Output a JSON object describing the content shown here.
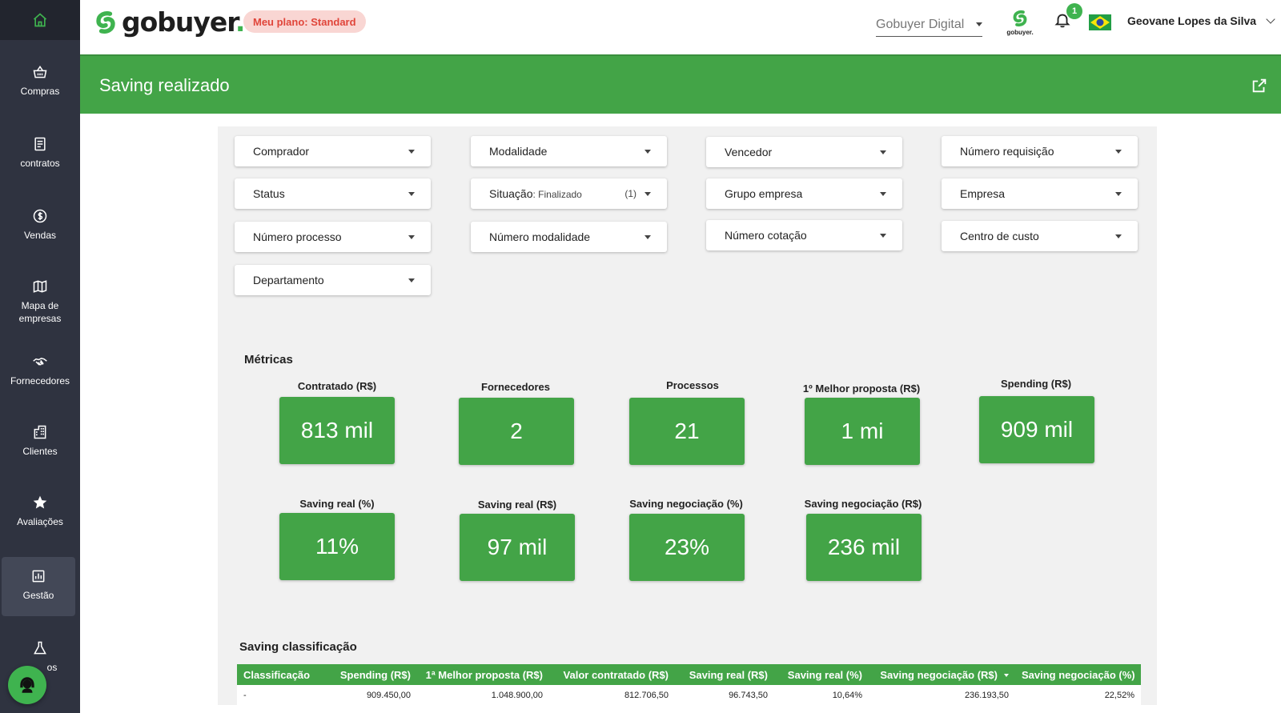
{
  "app": {
    "logo_text": "gobuyer",
    "logo_dot": ".",
    "plan_badge": "Meu plano: Standard",
    "org_select": "Gobuyer Digital",
    "mini_logo_text": "gobuyer.",
    "notification_count": "1",
    "user_name": "Geovane Lopes da Silva"
  },
  "sidebar": {
    "items": [
      {
        "label": "Compras",
        "icon": "basket-icon"
      },
      {
        "label": "contratos",
        "icon": "document-icon"
      },
      {
        "label": "Vendas",
        "icon": "dollar-icon"
      },
      {
        "label": "Mapa de empresas",
        "icon": "map-icon"
      },
      {
        "label": "Fornecedores",
        "icon": "handshake-icon"
      },
      {
        "label": "Clientes",
        "icon": "building-icon"
      },
      {
        "label": "Avaliações",
        "icon": "star-icon"
      },
      {
        "label": "Gestão",
        "icon": "chart-icon"
      },
      {
        "label": "os",
        "icon": "flask-icon"
      }
    ],
    "active": "Gestão"
  },
  "page": {
    "title": "Saving realizado"
  },
  "filters": {
    "comprador": "Comprador",
    "modalidade": "Modalidade",
    "vencedor": "Vencedor",
    "numero_requisicao": "Número requisição",
    "status": "Status",
    "situacao": "Situação",
    "situacao_value": ": Finalizado",
    "situacao_count": "(1)",
    "grupo_empresa": "Grupo empresa",
    "empresa": "Empresa",
    "numero_processo": "Número processo",
    "numero_modalidade": "Número modalidade",
    "numero_cotacao": "Número cotação",
    "centro_custo": "Centro de custo",
    "departamento": "Departamento"
  },
  "metrics": {
    "title": "Métricas",
    "contratado": {
      "label": "Contratado (R$)",
      "value": "813 mil"
    },
    "fornecedores": {
      "label": "Fornecedores",
      "value": "2"
    },
    "processos": {
      "label": "Processos",
      "value": "21"
    },
    "melhor_proposta": {
      "label": "1º Melhor proposta (R$)",
      "value": "1 mi"
    },
    "spending": {
      "label": "Spending (R$)",
      "value": "909 mil"
    },
    "saving_real_pct": {
      "label": "Saving real (%)",
      "value": "11%"
    },
    "saving_real_rs": {
      "label": "Saving real (R$)",
      "value": "97 mil"
    },
    "saving_neg_pct": {
      "label": "Saving negociação (%)",
      "value": "23%"
    },
    "saving_neg_rs": {
      "label": "Saving negociação (R$)",
      "value": "236 mil"
    }
  },
  "table": {
    "title": "Saving classificação",
    "headers": [
      "Classificação",
      "Spending (R$)",
      "1ª Melhor proposta (R$)",
      "Valor contratado (R$)",
      "Saving real (R$)",
      "Saving real (%)",
      "Saving negociação (R$)",
      "Saving negociação (%)"
    ],
    "rows": [
      [
        "-",
        "909.450,00",
        "1.048.900,00",
        "812.706,50",
        "96.743,50",
        "10,64%",
        "236.193,50",
        "22,52%"
      ]
    ]
  },
  "colors": {
    "brand_green": "#43a447",
    "sidebar_bg": "#2f3340",
    "plan_badge_bg": "#f9d6d3",
    "plan_badge_text": "#e0453a"
  }
}
